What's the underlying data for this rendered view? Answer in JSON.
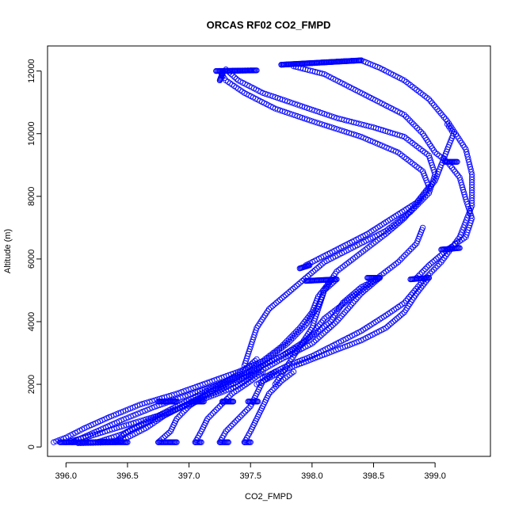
{
  "chart_data": {
    "type": "scatter",
    "title": "ORCAS RF02 CO2_FMPD",
    "xlabel": "CO2_FMPD",
    "ylabel": "Altitude (m)",
    "xlim": [
      395.85,
      399.45
    ],
    "ylim": [
      -300,
      12800
    ],
    "x_ticks": [
      396.0,
      396.5,
      397.0,
      397.5,
      398.0,
      398.5,
      399.0
    ],
    "x_tick_labels": [
      "396.0",
      "396.5",
      "397.0",
      "397.5",
      "398.0",
      "398.5",
      "399.0"
    ],
    "y_ticks": [
      0,
      2000,
      4000,
      6000,
      8000,
      10000,
      12000
    ],
    "y_tick_labels": [
      "0",
      "2000",
      "4000",
      "6000",
      "8000",
      "10000",
      "12000"
    ],
    "marker": "open-circle",
    "marker_color": "#0000ff",
    "grid": false,
    "legend": "none",
    "series": [
      {
        "values": [
          [
            395.9,
            150
          ],
          [
            396.0,
            300
          ],
          [
            396.15,
            600
          ],
          [
            396.35,
            950
          ],
          [
            396.6,
            1350
          ],
          [
            396.9,
            1700
          ],
          [
            397.15,
            2050
          ],
          [
            397.4,
            2400
          ],
          [
            397.6,
            2750
          ],
          [
            397.75,
            3200
          ],
          [
            397.9,
            3800
          ],
          [
            398.0,
            4300
          ],
          [
            398.05,
            4800
          ],
          [
            398.15,
            5300
          ]
        ]
      },
      {
        "values": [
          [
            396.05,
            150
          ],
          [
            396.25,
            500
          ],
          [
            396.45,
            850
          ],
          [
            396.7,
            1250
          ],
          [
            396.95,
            1600
          ],
          [
            397.25,
            2000
          ],
          [
            397.45,
            2300
          ],
          [
            397.6,
            2700
          ],
          [
            397.8,
            3300
          ],
          [
            397.95,
            3900
          ],
          [
            398.05,
            4500
          ],
          [
            398.1,
            5000
          ],
          [
            398.2,
            5350
          ]
        ]
      },
      {
        "values": [
          [
            396.25,
            150
          ],
          [
            396.45,
            400
          ],
          [
            396.65,
            750
          ],
          [
            396.85,
            1100
          ],
          [
            397.05,
            1500
          ],
          [
            397.25,
            1800
          ],
          [
            397.45,
            2200
          ],
          [
            397.6,
            2600
          ],
          [
            397.75,
            2900
          ],
          [
            397.9,
            3200
          ],
          [
            398.0,
            3600
          ],
          [
            398.1,
            4100
          ],
          [
            398.3,
            4700
          ],
          [
            398.5,
            5300
          ],
          [
            398.7,
            5900
          ],
          [
            398.85,
            6500
          ],
          [
            398.9,
            7000
          ]
        ]
      },
      {
        "values": [
          [
            396.0,
            150
          ],
          [
            396.2,
            350
          ],
          [
            396.45,
            650
          ],
          [
            396.75,
            1000
          ],
          [
            397.0,
            1350
          ],
          [
            397.2,
            1650
          ],
          [
            397.4,
            1950
          ],
          [
            397.55,
            2350
          ],
          [
            397.75,
            2800
          ],
          [
            398.0,
            3300
          ],
          [
            398.2,
            4000
          ],
          [
            398.4,
            4900
          ],
          [
            398.55,
            5400
          ]
        ]
      },
      {
        "values": [
          [
            397.55,
            2000
          ],
          [
            397.8,
            2500
          ],
          [
            398.1,
            2950
          ],
          [
            398.4,
            3400
          ],
          [
            398.6,
            3800
          ],
          [
            398.75,
            4300
          ],
          [
            398.85,
            4900
          ],
          [
            398.95,
            5400
          ]
        ]
      },
      {
        "values": [
          [
            396.1,
            120
          ],
          [
            396.4,
            150
          ],
          [
            396.5,
            500
          ],
          [
            396.8,
            1100
          ],
          [
            397.0,
            1500
          ],
          [
            397.2,
            1900
          ],
          [
            397.35,
            2200
          ],
          [
            397.55,
            2500
          ],
          [
            397.75,
            2900
          ],
          [
            397.95,
            3400
          ],
          [
            398.15,
            4000
          ],
          [
            398.25,
            4600
          ],
          [
            398.4,
            5100
          ],
          [
            398.55,
            5400
          ]
        ]
      },
      {
        "values": [
          [
            396.75,
            150
          ],
          [
            396.85,
            500
          ],
          [
            396.9,
            900
          ],
          [
            397.0,
            1300
          ],
          [
            397.15,
            1700
          ],
          [
            397.3,
            2100
          ],
          [
            397.45,
            2450
          ],
          [
            397.55,
            2800
          ]
        ]
      },
      {
        "values": [
          [
            397.05,
            150
          ],
          [
            397.1,
            500
          ],
          [
            397.15,
            900
          ],
          [
            397.25,
            1300
          ],
          [
            397.35,
            1700
          ],
          [
            397.5,
            2100
          ],
          [
            397.6,
            2400
          ]
        ]
      },
      {
        "values": [
          [
            397.25,
            150
          ],
          [
            397.3,
            500
          ],
          [
            397.4,
            900
          ],
          [
            397.5,
            1300
          ],
          [
            397.55,
            1700
          ],
          [
            397.6,
            2100
          ],
          [
            397.7,
            2400
          ]
        ]
      },
      {
        "values": [
          [
            397.45,
            150
          ],
          [
            397.5,
            500
          ],
          [
            397.55,
            900
          ],
          [
            397.6,
            1300
          ],
          [
            397.65,
            1700
          ],
          [
            397.75,
            2100
          ],
          [
            397.85,
            2400
          ]
        ]
      },
      {
        "values": [
          [
            397.7,
            2000
          ],
          [
            397.8,
            2600
          ],
          [
            397.9,
            3200
          ],
          [
            398.0,
            3800
          ],
          [
            398.05,
            4400
          ],
          [
            398.1,
            5000
          ],
          [
            398.2,
            5600
          ],
          [
            398.4,
            6200
          ],
          [
            398.6,
            6800
          ],
          [
            398.75,
            7300
          ],
          [
            398.9,
            8000
          ],
          [
            399.0,
            8500
          ],
          [
            399.05,
            9000
          ],
          [
            399.1,
            9500
          ],
          [
            399.15,
            10000
          ],
          [
            399.1,
            10300
          ]
        ]
      },
      {
        "values": [
          [
            397.95,
            5800
          ],
          [
            398.2,
            6300
          ],
          [
            398.45,
            6800
          ],
          [
            398.65,
            7300
          ],
          [
            398.85,
            7800
          ],
          [
            398.95,
            8300
          ],
          [
            398.9,
            8800
          ],
          [
            398.7,
            9400
          ],
          [
            398.4,
            9900
          ],
          [
            398.0,
            10400
          ],
          [
            397.7,
            10800
          ],
          [
            397.45,
            11300
          ],
          [
            397.3,
            11700
          ],
          [
            397.25,
            12000
          ],
          [
            397.5,
            12020
          ]
        ]
      },
      {
        "values": [
          [
            397.75,
            12200
          ],
          [
            398.0,
            12250
          ],
          [
            398.2,
            12300
          ],
          [
            398.4,
            12340
          ],
          [
            398.55,
            12100
          ],
          [
            398.75,
            11700
          ],
          [
            398.95,
            11100
          ],
          [
            399.1,
            10400
          ],
          [
            399.25,
            9500
          ],
          [
            399.3,
            8700
          ],
          [
            399.3,
            7700
          ],
          [
            399.2,
            6700
          ],
          [
            399.05,
            5900
          ],
          [
            398.9,
            5300
          ],
          [
            398.75,
            4600
          ],
          [
            398.6,
            4200
          ],
          [
            398.4,
            3700
          ],
          [
            398.2,
            3300
          ],
          [
            398.0,
            2900
          ],
          [
            397.8,
            2600
          ],
          [
            397.6,
            2200
          ]
        ]
      },
      {
        "values": [
          [
            397.85,
            12150
          ],
          [
            398.1,
            11900
          ],
          [
            398.3,
            11500
          ],
          [
            398.55,
            11000
          ],
          [
            398.75,
            10600
          ],
          [
            398.9,
            10000
          ],
          [
            399.0,
            9400
          ],
          [
            399.1,
            9100
          ],
          [
            399.2,
            8600
          ],
          [
            399.25,
            7900
          ],
          [
            399.3,
            7300
          ],
          [
            399.25,
            6700
          ],
          [
            399.1,
            6300
          ],
          [
            398.95,
            5800
          ],
          [
            398.85,
            5400
          ]
        ]
      },
      {
        "values": [
          [
            397.3,
            12050
          ],
          [
            397.4,
            11700
          ],
          [
            397.6,
            11300
          ],
          [
            397.9,
            10900
          ],
          [
            398.2,
            10500
          ],
          [
            398.5,
            10200
          ],
          [
            398.75,
            9900
          ],
          [
            398.95,
            9300
          ],
          [
            399.0,
            8700
          ],
          [
            398.95,
            8100
          ],
          [
            398.8,
            7500
          ],
          [
            398.6,
            6900
          ],
          [
            398.35,
            6400
          ],
          [
            398.1,
            5900
          ],
          [
            397.95,
            5400
          ],
          [
            397.8,
            4900
          ],
          [
            397.65,
            4400
          ],
          [
            397.55,
            3800
          ],
          [
            397.5,
            3200
          ],
          [
            397.45,
            2600
          ]
        ]
      },
      {
        "values": [
          [
            396.2,
            150
          ],
          [
            396.45,
            200
          ],
          [
            396.65,
            600
          ],
          [
            396.8,
            1000
          ],
          [
            397.0,
            1400
          ],
          [
            397.2,
            1800
          ],
          [
            397.35,
            2100
          ],
          [
            397.5,
            2300
          ]
        ]
      }
    ],
    "dense_segments": [
      {
        "from": [
          395.95,
          150
        ],
        "to": [
          396.2,
          150
        ]
      },
      {
        "from": [
          396.25,
          150
        ],
        "to": [
          396.5,
          150
        ]
      },
      {
        "from": [
          396.75,
          150
        ],
        "to": [
          396.9,
          150
        ]
      },
      {
        "from": [
          397.05,
          150
        ],
        "to": [
          397.1,
          150
        ]
      },
      {
        "from": [
          397.25,
          150
        ],
        "to": [
          397.32,
          150
        ]
      },
      {
        "from": [
          397.45,
          150
        ],
        "to": [
          397.5,
          150
        ]
      },
      {
        "from": [
          396.75,
          1450
        ],
        "to": [
          396.9,
          1450
        ]
      },
      {
        "from": [
          397.02,
          1450
        ],
        "to": [
          397.12,
          1450
        ]
      },
      {
        "from": [
          397.27,
          1450
        ],
        "to": [
          397.36,
          1450
        ]
      },
      {
        "from": [
          397.48,
          1450
        ],
        "to": [
          397.56,
          1450
        ]
      },
      {
        "from": [
          397.95,
          5300
        ],
        "to": [
          398.2,
          5350
        ]
      },
      {
        "from": [
          398.8,
          5350
        ],
        "to": [
          398.95,
          5400
        ]
      },
      {
        "from": [
          398.45,
          5400
        ],
        "to": [
          398.55,
          5400
        ]
      },
      {
        "from": [
          397.9,
          5700
        ],
        "to": [
          397.98,
          5800
        ]
      },
      {
        "from": [
          399.05,
          6300
        ],
        "to": [
          399.2,
          6350
        ]
      },
      {
        "from": [
          399.08,
          9100
        ],
        "to": [
          399.18,
          9100
        ]
      },
      {
        "from": [
          397.22,
          12000
        ],
        "to": [
          397.55,
          12020
        ]
      },
      {
        "from": [
          397.75,
          12200
        ],
        "to": [
          398.4,
          12340
        ]
      },
      {
        "from": [
          397.25,
          11700
        ],
        "to": [
          397.28,
          12000
        ]
      }
    ]
  }
}
